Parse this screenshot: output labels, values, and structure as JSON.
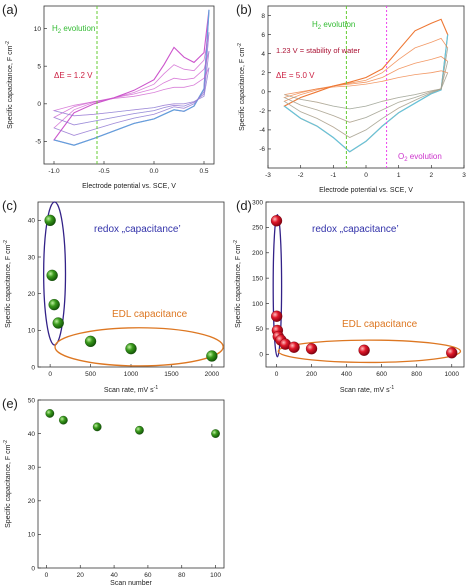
{
  "panels": {
    "a": {
      "tag": "(a)",
      "ylabel": "Specific capacitance, F cm",
      "ylabel_sup": "-2",
      "xlabel": "Electrode potential vs. SCE, V",
      "note_h2_main": "H",
      "note_h2_sub": "2",
      "note_h2_rest": " evolution",
      "note_de": "ΔE = 1.2 V"
    },
    "b": {
      "tag": "(b)",
      "ylabel": "Specific capacitance, F cm",
      "ylabel_sup": "-2",
      "xlabel": "Electrode potential vs. SCE, V",
      "note_h2_main": "H",
      "note_h2_sub": "2",
      "note_h2_rest": " evolution",
      "note_water": "1.23 V = stability of water",
      "note_de": "ΔE = 5.0 V",
      "note_o2_main": "O",
      "note_o2_sub": "2",
      "note_o2_rest": " evolution"
    },
    "c": {
      "tag": "(c)",
      "ylabel": "Specific capacitance, F cm",
      "ylabel_sup": "-2",
      "xlabel_main": "Scan rate, mV s",
      "xlabel_sup": "-1",
      "note_redox": "redox „capacitance’",
      "note_edl": "EDL capacitance"
    },
    "d": {
      "tag": "(d)",
      "ylabel": "Specific capacitance, F cm",
      "ylabel_sup": "-2",
      "xlabel_main": "Scan rate, mV s",
      "xlabel_sup": "-1",
      "note_redox": "redox „capacitance’",
      "note_edl": "EDL capacitance"
    },
    "e": {
      "tag": "(e)",
      "ylabel": "Specific capacitance, F cm",
      "ylabel_sup": "-2",
      "xlabel": "Scan number"
    }
  },
  "colors": {
    "axis": "#333333",
    "green_label": "#33bb33",
    "green_line": "#66cc33",
    "magenta": "#cc33cc",
    "magenta_line": "#ee44ee",
    "blue_ellipse": "#332288",
    "blue_text": "#3333aa",
    "orange": "#dd7722",
    "green_ball": "#228811",
    "red_ball": "#dd1122",
    "cv_purple": "#cc55cc",
    "cv_blue": "#55aadd",
    "cv_orange": "#ee7733",
    "cv_cyan": "#55ccee"
  },
  "chart_data": [
    {
      "panel": "a",
      "type": "line",
      "xlim": [
        -1.1,
        0.6
      ],
      "ylim": [
        -8,
        13
      ],
      "xticks": [
        -1.0,
        -0.5,
        0.0,
        0.5
      ],
      "yticks": [
        -5,
        0,
        5,
        10
      ],
      "xtick_labels": [
        "-1.0",
        "-0.5",
        "0.0",
        "0.5"
      ],
      "ytick_labels": [
        "-5",
        "0",
        "5",
        "10"
      ],
      "vline_h2": -0.57,
      "series": [
        {
          "x": [
            -1.0,
            -0.8,
            -0.6,
            -0.4,
            -0.2,
            0.0,
            0.1,
            0.2,
            0.3,
            0.4,
            0.5,
            0.55
          ],
          "forward": [
            -4.8,
            -1.2,
            0.0,
            0.8,
            1.8,
            3.2,
            5.2,
            7.5,
            6.2,
            5.5,
            6.8,
            12.5
          ],
          "reverse": [
            -4.8,
            -5.5,
            -4.6,
            -3.6,
            -2.6,
            -2.0,
            -1.4,
            -0.8,
            -1.0,
            -0.3,
            2.0,
            12.5
          ]
        },
        {
          "x": [
            -1.0,
            -0.8,
            -0.6,
            -0.4,
            -0.2,
            0.0,
            0.1,
            0.2,
            0.3,
            0.4,
            0.5,
            0.55
          ],
          "forward": [
            -3.2,
            -0.8,
            0.2,
            0.8,
            1.5,
            2.6,
            4.0,
            5.2,
            4.6,
            4.4,
            5.8,
            9.5
          ],
          "reverse": [
            -3.2,
            -4.2,
            -3.4,
            -2.6,
            -1.9,
            -1.4,
            -0.9,
            -0.4,
            -0.6,
            0.0,
            1.6,
            9.5
          ]
        },
        {
          "x": [
            -1.0,
            -0.8,
            -0.6,
            -0.4,
            -0.2,
            0.0,
            0.1,
            0.2,
            0.3,
            0.4,
            0.5,
            0.55
          ],
          "forward": [
            -1.8,
            -0.4,
            0.3,
            0.8,
            1.3,
            2.0,
            2.8,
            3.4,
            3.2,
            3.4,
            4.6,
            7.0
          ],
          "reverse": [
            -1.8,
            -2.8,
            -2.3,
            -1.8,
            -1.3,
            -0.9,
            -0.5,
            -0.2,
            -0.3,
            0.2,
            1.3,
            7.0
          ]
        },
        {
          "x": [
            -1.0,
            -0.8,
            -0.6,
            -0.4,
            -0.2,
            0.0,
            0.1,
            0.2,
            0.3,
            0.4,
            0.5,
            0.55
          ],
          "forward": [
            -0.9,
            -0.2,
            0.3,
            0.7,
            1.0,
            1.5,
            1.9,
            2.2,
            2.2,
            2.5,
            3.4,
            4.8
          ],
          "reverse": [
            -0.9,
            -1.6,
            -1.4,
            -1.1,
            -0.8,
            -0.5,
            -0.2,
            0.0,
            0.0,
            0.3,
            1.0,
            4.8
          ]
        }
      ]
    },
    {
      "panel": "b",
      "type": "line",
      "xlim": [
        -3,
        3
      ],
      "ylim": [
        -8,
        9
      ],
      "xticks": [
        -3,
        -2,
        -1,
        0,
        1,
        2,
        3
      ],
      "yticks": [
        -6,
        -4,
        -2,
        0,
        2,
        4,
        6,
        8
      ],
      "xtick_labels": [
        "-3",
        "-2",
        "-1",
        "0",
        "1",
        "2",
        "3"
      ],
      "ytick_labels": [
        "-6",
        "-4",
        "-2",
        "0",
        "2",
        "4",
        "6",
        "8"
      ],
      "vline_h2": -0.6,
      "vline_o2": 0.63,
      "series": [
        {
          "x": [
            -2.5,
            -2.0,
            -1.5,
            -1.0,
            -0.5,
            0.0,
            0.5,
            1.0,
            1.5,
            2.0,
            2.3,
            2.5
          ],
          "forward": [
            -1.5,
            -0.6,
            0.0,
            0.6,
            1.0,
            1.5,
            2.4,
            4.4,
            6.4,
            7.2,
            7.6,
            6.0
          ],
          "reverse": [
            -1.5,
            -2.8,
            -3.6,
            -4.8,
            -6.3,
            -5.2,
            -3.6,
            -2.2,
            -1.2,
            -0.2,
            0.2,
            6.0
          ]
        },
        {
          "x": [
            -2.5,
            -2.0,
            -1.5,
            -1.0,
            -0.5,
            0.0,
            0.5,
            1.0,
            1.5,
            2.0,
            2.3,
            2.5
          ],
          "forward": [
            -1.0,
            -0.3,
            0.2,
            0.6,
            0.9,
            1.2,
            2.0,
            3.4,
            4.6,
            5.2,
            5.6,
            4.6
          ],
          "reverse": [
            -1.0,
            -2.1,
            -2.8,
            -3.7,
            -4.8,
            -4.0,
            -2.8,
            -1.7,
            -0.9,
            -0.1,
            0.3,
            4.6
          ]
        },
        {
          "x": [
            -2.5,
            -2.0,
            -1.5,
            -1.0,
            -0.5,
            0.0,
            0.5,
            1.0,
            1.5,
            2.0,
            2.3,
            2.5
          ],
          "forward": [
            -0.6,
            -0.1,
            0.3,
            0.6,
            0.8,
            1.0,
            1.5,
            2.4,
            3.0,
            3.4,
            3.7,
            3.2
          ],
          "reverse": [
            -0.6,
            -1.4,
            -1.9,
            -2.5,
            -3.2,
            -2.7,
            -1.9,
            -1.1,
            -0.6,
            0.0,
            0.3,
            3.2
          ]
        },
        {
          "x": [
            -2.5,
            -2.0,
            -1.5,
            -1.0,
            -0.5,
            0.0,
            0.5,
            1.0,
            1.5,
            2.0,
            2.3,
            2.5
          ],
          "forward": [
            -0.3,
            0.0,
            0.3,
            0.5,
            0.6,
            0.8,
            1.1,
            1.5,
            1.8,
            2.0,
            2.2,
            2.0
          ],
          "reverse": [
            -0.3,
            -0.8,
            -1.1,
            -1.5,
            -1.8,
            -1.5,
            -1.0,
            -0.6,
            -0.3,
            0.1,
            0.3,
            2.0
          ]
        }
      ]
    },
    {
      "panel": "c",
      "type": "scatter",
      "xlim": [
        -150,
        2150
      ],
      "ylim": [
        0,
        45
      ],
      "xticks": [
        0,
        500,
        1000,
        1500,
        2000
      ],
      "yticks": [
        0,
        10,
        20,
        30,
        40
      ],
      "xtick_labels": [
        "0",
        "500",
        "1000",
        "1500",
        "2000"
      ],
      "ytick_labels": [
        "0",
        "10",
        "20",
        "30",
        "40"
      ],
      "x": [
        0,
        25,
        50,
        100,
        500,
        1000,
        2000
      ],
      "y": [
        40,
        25,
        17,
        12,
        7,
        5,
        3
      ],
      "redox_ellipse": {
        "cx": 55,
        "cy": 25.5,
        "rx": 135,
        "ry": 19.5
      },
      "edl_ellipse": {
        "cx": 1100,
        "cy": 5.5,
        "rx": 1040,
        "ry": 5.2
      }
    },
    {
      "panel": "d",
      "type": "scatter",
      "xlim": [
        -60,
        1070
      ],
      "ylim": [
        -25,
        300
      ],
      "xticks": [
        0,
        200,
        400,
        600,
        800,
        1000
      ],
      "yticks": [
        0,
        50,
        100,
        150,
        200,
        250,
        300
      ],
      "xtick_labels": [
        "0",
        "200",
        "400",
        "600",
        "800",
        "1000"
      ],
      "ytick_labels": [
        "0",
        "50",
        "100",
        "150",
        "200",
        "250",
        "300"
      ],
      "x": [
        0,
        1,
        5,
        10,
        25,
        50,
        100,
        200,
        500,
        1000
      ],
      "y": [
        263,
        75,
        47,
        35,
        28,
        20,
        14,
        11,
        8,
        3
      ],
      "redox_ellipse": {
        "cx": 5,
        "cy": 135,
        "rx": 24,
        "ry": 140
      },
      "edl_ellipse": {
        "cx": 530,
        "cy": 6,
        "rx": 520,
        "ry": 22
      }
    },
    {
      "panel": "e",
      "type": "scatter",
      "xlim": [
        -5,
        105
      ],
      "ylim": [
        0,
        50
      ],
      "xticks": [
        0,
        20,
        40,
        60,
        80,
        100
      ],
      "yticks": [
        0,
        10,
        20,
        30,
        40,
        50
      ],
      "xtick_labels": [
        "0",
        "20",
        "40",
        "60",
        "80",
        "100"
      ],
      "ytick_labels": [
        "0",
        "10",
        "20",
        "30",
        "40",
        "50"
      ],
      "x": [
        2,
        10,
        30,
        55,
        100
      ],
      "y": [
        46,
        44,
        42,
        41,
        40
      ]
    }
  ]
}
